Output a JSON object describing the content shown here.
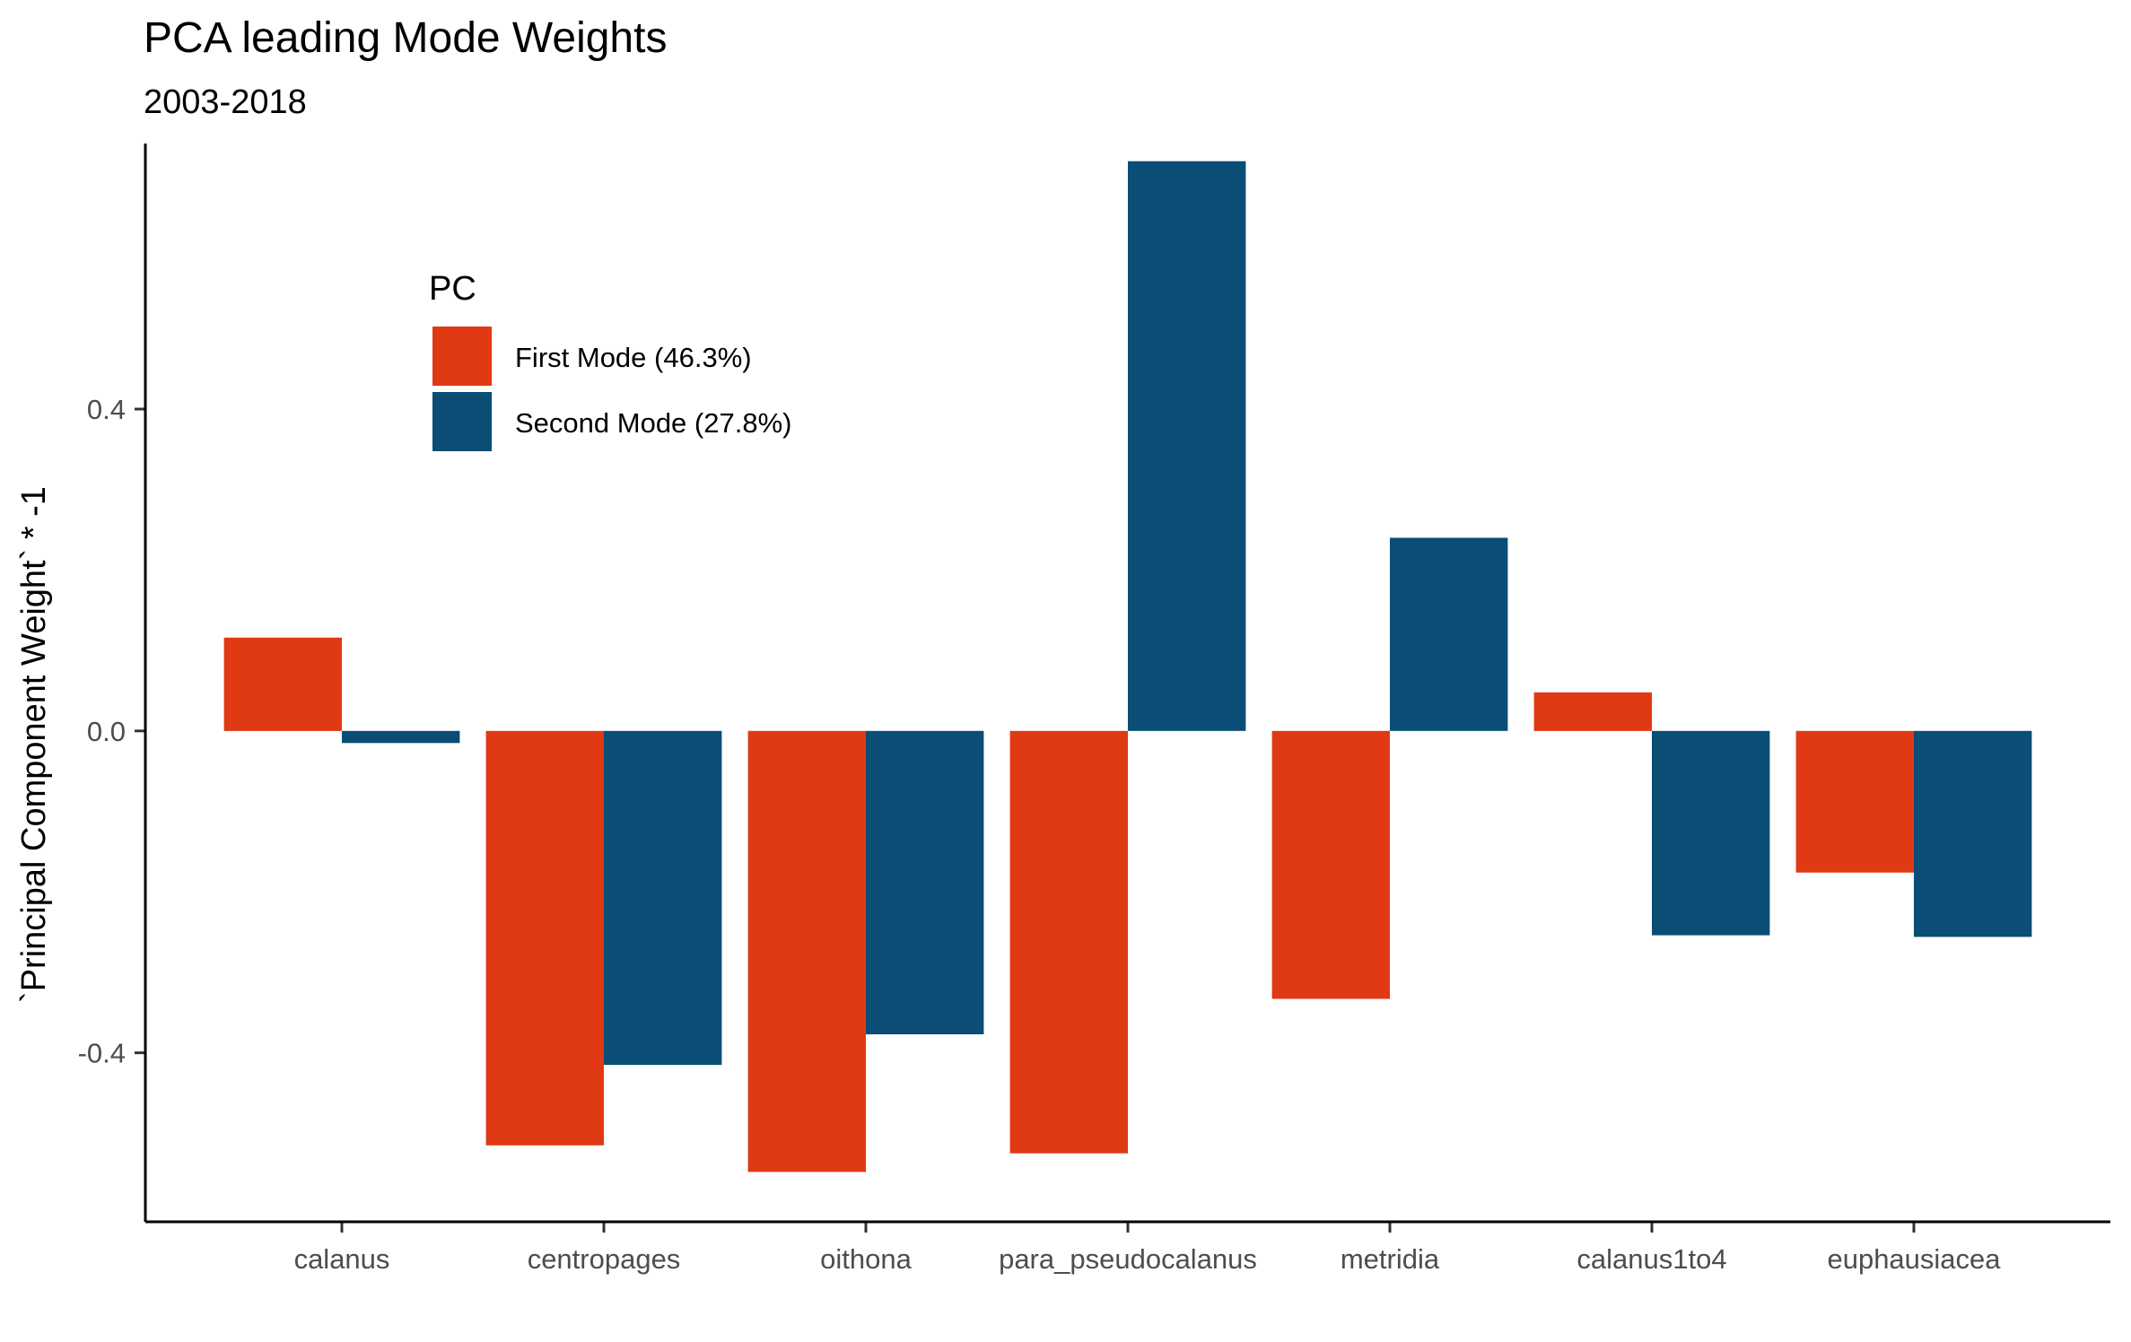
{
  "chart_data": {
    "type": "bar",
    "title": "PCA leading Mode Weights",
    "subtitle": "2003-2018",
    "xlabel": "",
    "ylabel": "`Principal Component Weight` * -1",
    "categories": [
      "calanus",
      "centropages",
      "oithona",
      "para_pseudocalanus",
      "metridia",
      "calanus1to4",
      "euphausiacea"
    ],
    "series": [
      {
        "name": "First Mode (46.3%)",
        "color": "#E03A14",
        "values": [
          0.116,
          -0.515,
          -0.548,
          -0.525,
          -0.333,
          0.048,
          -0.176
        ]
      },
      {
        "name": "Second Mode (27.8%)",
        "color": "#0A4D75",
        "values": [
          -0.015,
          -0.415,
          -0.377,
          0.708,
          0.24,
          -0.254,
          -0.256
        ]
      }
    ],
    "ylim": [
      -0.61,
      0.73
    ],
    "yticks": [
      -0.4,
      0.0,
      0.4
    ],
    "ytick_labels": [
      "-0.4",
      "0.0",
      "0.4"
    ],
    "legend": {
      "title": "PC",
      "position": "top-left"
    },
    "grid": false
  }
}
